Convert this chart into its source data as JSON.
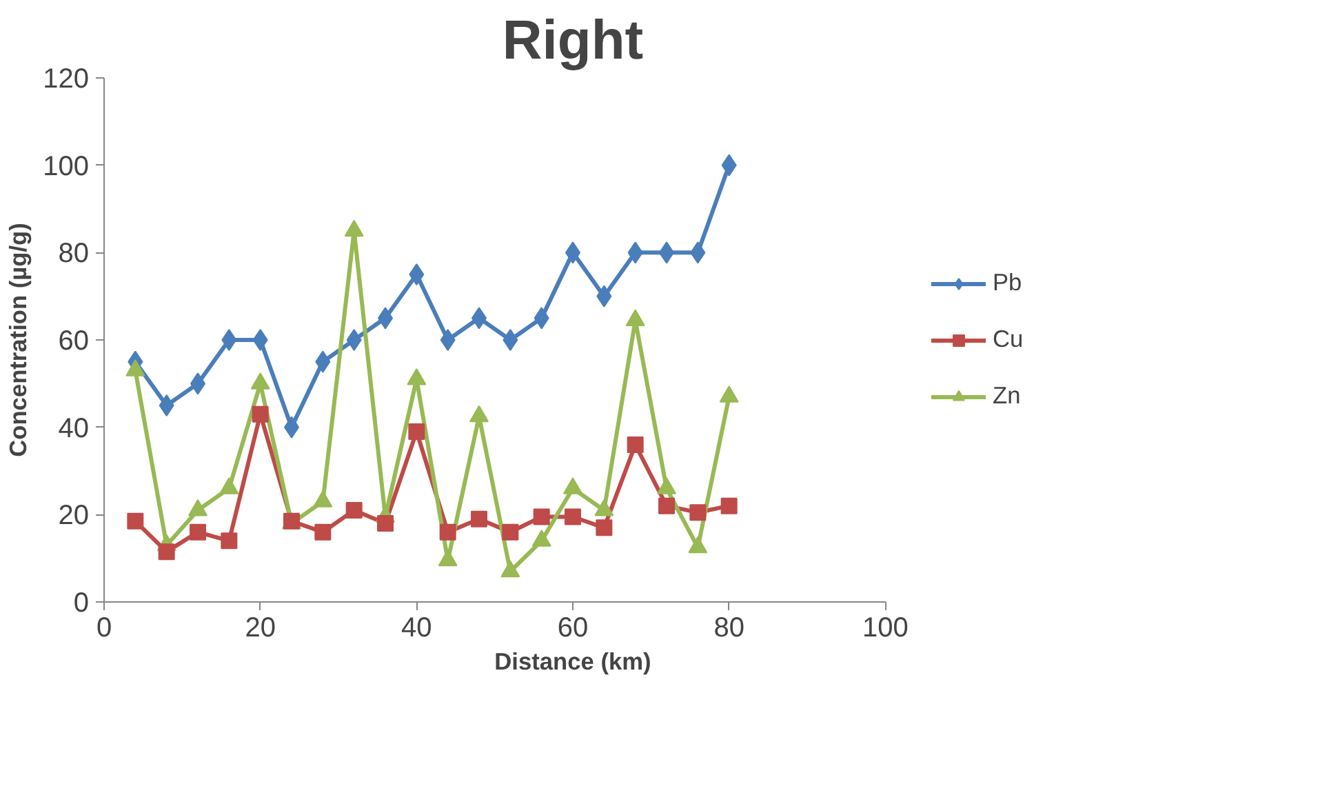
{
  "chart_data": {
    "type": "line",
    "title": "Right",
    "xlabel": "Distance (km)",
    "ylabel": "Concentration (µg/g)",
    "x": [
      4,
      8,
      12,
      16,
      20,
      24,
      28,
      32,
      36,
      40,
      44,
      48,
      52,
      56,
      60,
      64,
      68,
      72,
      76,
      80
    ],
    "series": [
      {
        "name": "Pb",
        "color": "#4a7ebb",
        "marker": "diamond",
        "values": [
          55,
          45,
          50,
          60,
          60,
          40,
          55,
          60,
          65,
          75,
          60,
          65,
          60,
          65,
          80,
          70,
          80,
          80,
          80,
          100
        ]
      },
      {
        "name": "Cu",
        "color": "#be4b48",
        "marker": "square",
        "values": [
          18.5,
          11.5,
          16,
          14,
          43,
          18.5,
          16,
          21,
          18,
          39,
          16,
          19,
          16,
          19.5,
          19.5,
          17,
          36,
          22,
          20.5,
          22
        ]
      },
      {
        "name": "Zn",
        "color": "#98b954",
        "marker": "triangle",
        "values": [
          53,
          13,
          21,
          26,
          50,
          18,
          23,
          85,
          19.5,
          51,
          9.5,
          42.5,
          7,
          14,
          26,
          21,
          64.5,
          26,
          12.5,
          47
        ]
      }
    ],
    "xlim": [
      0,
      100
    ],
    "ylim": [
      0,
      120
    ],
    "xticks": [
      0,
      20,
      40,
      60,
      80,
      100
    ],
    "yticks": [
      0,
      20,
      40,
      60,
      80,
      100,
      120
    ],
    "grid": false,
    "legend": "right",
    "line_style": "solid"
  }
}
